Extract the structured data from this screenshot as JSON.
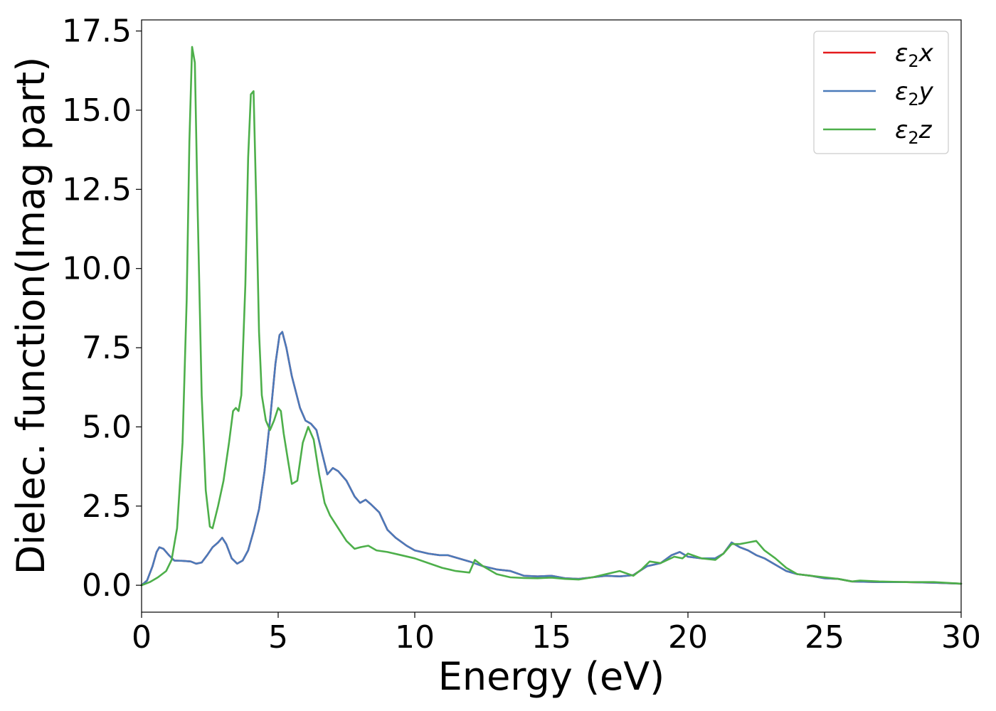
{
  "chart_data": {
    "type": "line",
    "xlabel": "Energy (eV)",
    "ylabel": "Dielec. function(Imag part)",
    "xlim": [
      0,
      30
    ],
    "ylim": [
      -0.85,
      17.85
    ],
    "xticks": [
      0,
      5,
      10,
      15,
      20,
      25,
      30
    ],
    "xtick_labels": [
      "0",
      "5",
      "10",
      "15",
      "20",
      "25",
      "30"
    ],
    "yticks": [
      0.0,
      2.5,
      5.0,
      7.5,
      10.0,
      12.5,
      15.0,
      17.5
    ],
    "ytick_labels": [
      "0.0",
      "2.5",
      "5.0",
      "7.5",
      "10.0",
      "12.5",
      "15.0",
      "17.5"
    ],
    "grid": false,
    "legend_position": "top-right",
    "series": [
      {
        "name": "ε2x",
        "legend_base": "ε",
        "legend_sub": "2",
        "legend_tail": "x",
        "color": "#e41a1c",
        "x": [
          0,
          0.2,
          0.4,
          0.55,
          0.65,
          0.8,
          1.0,
          1.2,
          1.5,
          1.8,
          2.0,
          2.2,
          2.4,
          2.6,
          2.8,
          2.95,
          3.1,
          3.3,
          3.5,
          3.7,
          3.9,
          4.1,
          4.3,
          4.5,
          4.7,
          4.9,
          5.05,
          5.15,
          5.3,
          5.5,
          5.8,
          6.0,
          6.2,
          6.4,
          6.6,
          6.8,
          7.0,
          7.2,
          7.5,
          7.8,
          8.0,
          8.2,
          8.4,
          8.7,
          9.0,
          9.3,
          9.7,
          10.0,
          10.5,
          10.9,
          11.2,
          11.6,
          12.0,
          12.5,
          13.0,
          13.5,
          14.0,
          14.5,
          15.0,
          15.5,
          16.0,
          16.5,
          17.0,
          17.5,
          18.0,
          18.5,
          19.0,
          19.4,
          19.7,
          20.0,
          20.5,
          21.0,
          21.3,
          21.6,
          21.9,
          22.2,
          22.5,
          22.8,
          23.2,
          23.6,
          24.0,
          24.5,
          25.0,
          25.5,
          26.0,
          27.0,
          28.0,
          29.0,
          30.0
        ],
        "y": [
          0,
          0.15,
          0.6,
          1.05,
          1.2,
          1.15,
          0.95,
          0.78,
          0.77,
          0.75,
          0.68,
          0.72,
          0.95,
          1.2,
          1.35,
          1.5,
          1.3,
          0.85,
          0.68,
          0.78,
          1.1,
          1.7,
          2.4,
          3.6,
          5.2,
          7.0,
          7.9,
          8.0,
          7.5,
          6.6,
          5.6,
          5.2,
          5.1,
          4.9,
          4.2,
          3.5,
          3.7,
          3.6,
          3.3,
          2.8,
          2.6,
          2.7,
          2.55,
          2.3,
          1.75,
          1.5,
          1.25,
          1.1,
          1.0,
          0.95,
          0.95,
          0.85,
          0.75,
          0.6,
          0.5,
          0.45,
          0.3,
          0.28,
          0.3,
          0.22,
          0.2,
          0.25,
          0.3,
          0.28,
          0.32,
          0.6,
          0.7,
          0.95,
          1.05,
          0.9,
          0.85,
          0.85,
          1.0,
          1.35,
          1.2,
          1.1,
          0.95,
          0.85,
          0.65,
          0.45,
          0.35,
          0.3,
          0.22,
          0.2,
          0.12,
          0.1,
          0.1,
          0.08,
          0.05
        ]
      },
      {
        "name": "ε2y",
        "legend_base": "ε",
        "legend_sub": "2",
        "legend_tail": "y",
        "color": "#4a7aba",
        "x": [
          0,
          0.2,
          0.4,
          0.55,
          0.65,
          0.8,
          1.0,
          1.2,
          1.5,
          1.8,
          2.0,
          2.2,
          2.4,
          2.6,
          2.8,
          2.95,
          3.1,
          3.3,
          3.5,
          3.7,
          3.9,
          4.1,
          4.3,
          4.5,
          4.7,
          4.9,
          5.05,
          5.15,
          5.3,
          5.5,
          5.8,
          6.0,
          6.2,
          6.4,
          6.6,
          6.8,
          7.0,
          7.2,
          7.5,
          7.8,
          8.0,
          8.2,
          8.4,
          8.7,
          9.0,
          9.3,
          9.7,
          10.0,
          10.5,
          10.9,
          11.2,
          11.6,
          12.0,
          12.5,
          13.0,
          13.5,
          14.0,
          14.5,
          15.0,
          15.5,
          16.0,
          16.5,
          17.0,
          17.5,
          18.0,
          18.5,
          19.0,
          19.4,
          19.7,
          20.0,
          20.5,
          21.0,
          21.3,
          21.6,
          21.9,
          22.2,
          22.5,
          22.8,
          23.2,
          23.6,
          24.0,
          24.5,
          25.0,
          25.5,
          26.0,
          27.0,
          28.0,
          29.0,
          30.0
        ],
        "y": [
          0,
          0.15,
          0.6,
          1.05,
          1.2,
          1.15,
          0.95,
          0.78,
          0.77,
          0.75,
          0.68,
          0.72,
          0.95,
          1.2,
          1.35,
          1.5,
          1.3,
          0.85,
          0.68,
          0.78,
          1.1,
          1.7,
          2.4,
          3.6,
          5.2,
          7.0,
          7.9,
          8.0,
          7.5,
          6.6,
          5.6,
          5.2,
          5.1,
          4.9,
          4.2,
          3.5,
          3.7,
          3.6,
          3.3,
          2.8,
          2.6,
          2.7,
          2.55,
          2.3,
          1.75,
          1.5,
          1.25,
          1.1,
          1.0,
          0.95,
          0.95,
          0.85,
          0.75,
          0.6,
          0.5,
          0.45,
          0.3,
          0.28,
          0.3,
          0.22,
          0.2,
          0.25,
          0.3,
          0.28,
          0.32,
          0.6,
          0.7,
          0.95,
          1.05,
          0.9,
          0.85,
          0.85,
          1.0,
          1.35,
          1.2,
          1.1,
          0.95,
          0.85,
          0.65,
          0.45,
          0.35,
          0.3,
          0.22,
          0.2,
          0.12,
          0.1,
          0.1,
          0.08,
          0.05
        ]
      },
      {
        "name": "ε2z",
        "legend_base": "ε",
        "legend_sub": "2",
        "legend_tail": "z",
        "color": "#4daf4a",
        "x": [
          0,
          0.3,
          0.6,
          0.9,
          1.1,
          1.3,
          1.5,
          1.65,
          1.75,
          1.85,
          1.95,
          2.05,
          2.2,
          2.35,
          2.5,
          2.6,
          2.8,
          3.0,
          3.2,
          3.35,
          3.45,
          3.55,
          3.65,
          3.8,
          3.9,
          4.0,
          4.1,
          4.2,
          4.3,
          4.4,
          4.55,
          4.7,
          4.85,
          5.0,
          5.1,
          5.2,
          5.35,
          5.5,
          5.7,
          5.9,
          6.1,
          6.3,
          6.5,
          6.7,
          6.9,
          7.2,
          7.5,
          7.8,
          8.0,
          8.3,
          8.6,
          9.0,
          9.5,
          10.0,
          10.5,
          11.0,
          11.5,
          12.0,
          12.2,
          12.5,
          13.0,
          13.5,
          14.0,
          14.5,
          15.0,
          15.5,
          16.0,
          16.5,
          17.0,
          17.5,
          18.0,
          18.3,
          18.6,
          19.0,
          19.5,
          19.8,
          20.0,
          20.5,
          21.0,
          21.3,
          21.6,
          21.9,
          22.2,
          22.5,
          22.8,
          23.2,
          23.6,
          24.0,
          24.5,
          25.0,
          25.5,
          26.0,
          26.3,
          27.0,
          28.0,
          29.0,
          30.0
        ],
        "y": [
          0,
          0.1,
          0.25,
          0.45,
          0.8,
          1.8,
          4.5,
          9.0,
          14.0,
          17.0,
          16.5,
          12.0,
          6.0,
          3.0,
          1.85,
          1.8,
          2.5,
          3.3,
          4.5,
          5.5,
          5.6,
          5.5,
          6.0,
          9.5,
          13.5,
          15.5,
          15.6,
          12.0,
          8.0,
          6.0,
          5.2,
          4.9,
          5.2,
          5.6,
          5.5,
          4.8,
          4.0,
          3.2,
          3.3,
          4.5,
          5.0,
          4.6,
          3.5,
          2.6,
          2.2,
          1.8,
          1.4,
          1.15,
          1.2,
          1.25,
          1.1,
          1.05,
          0.95,
          0.85,
          0.7,
          0.55,
          0.45,
          0.4,
          0.8,
          0.6,
          0.35,
          0.25,
          0.23,
          0.22,
          0.24,
          0.2,
          0.18,
          0.25,
          0.35,
          0.45,
          0.3,
          0.5,
          0.75,
          0.7,
          0.9,
          0.85,
          1.0,
          0.85,
          0.8,
          1.0,
          1.3,
          1.3,
          1.35,
          1.4,
          1.1,
          0.85,
          0.55,
          0.35,
          0.3,
          0.25,
          0.2,
          0.12,
          0.15,
          0.12,
          0.1,
          0.1,
          0.05
        ]
      }
    ]
  }
}
